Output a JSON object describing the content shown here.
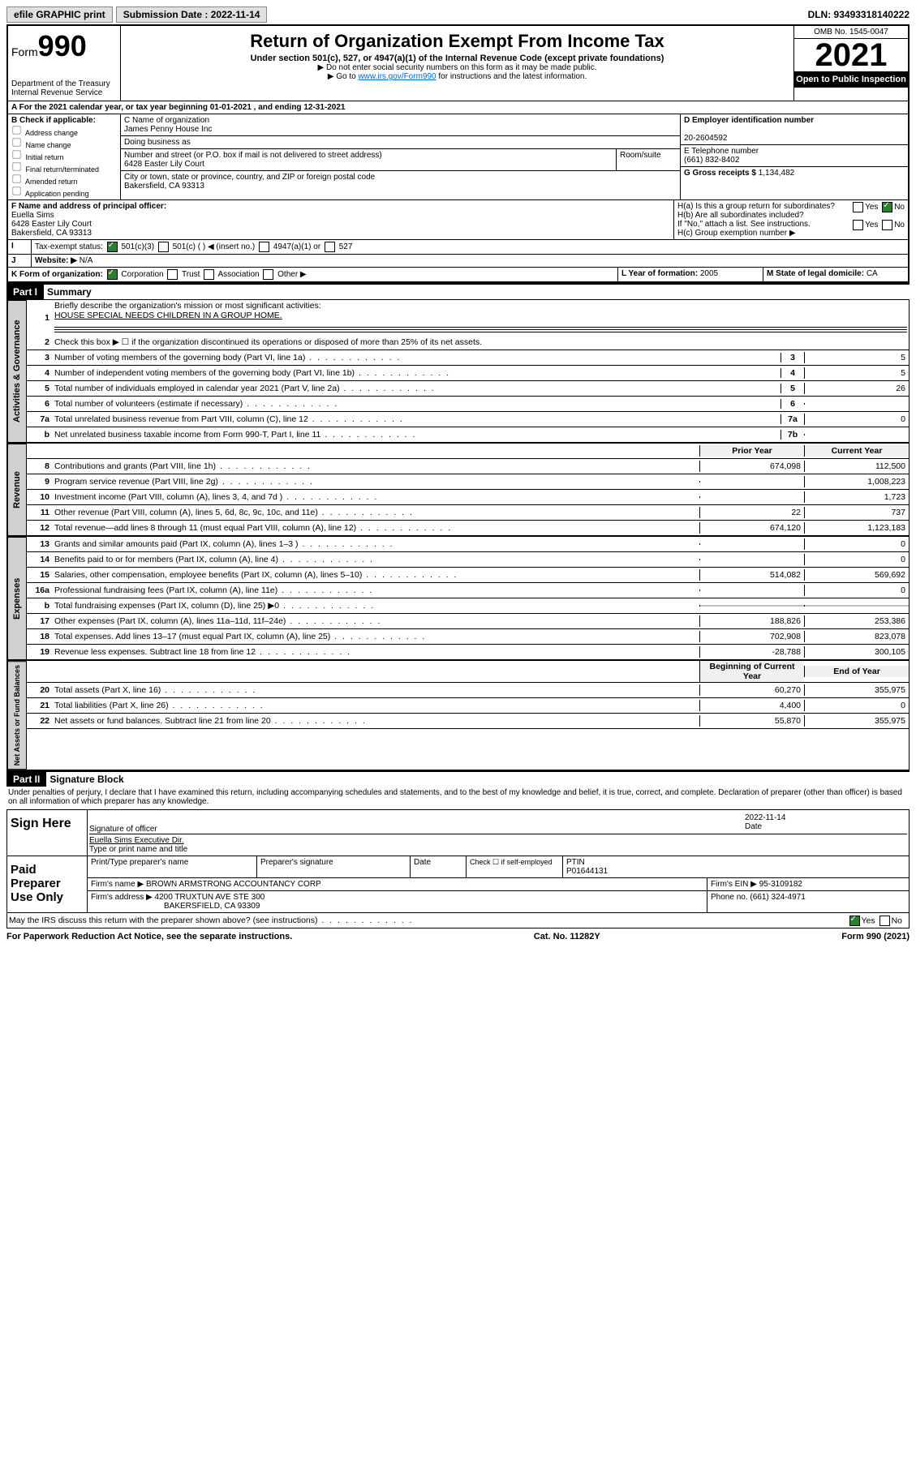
{
  "topbar": {
    "efile": "efile GRAPHIC print",
    "submission_label": "Submission Date : 2022-11-14",
    "dln": "DLN: 93493318140222"
  },
  "header": {
    "form_label": "Form",
    "form_number": "990",
    "dept": "Department of the Treasury",
    "irs": "Internal Revenue Service",
    "title": "Return of Organization Exempt From Income Tax",
    "subtitle": "Under section 501(c), 527, or 4947(a)(1) of the Internal Revenue Code (except private foundations)",
    "note1": "▶ Do not enter social security numbers on this form as it may be made public.",
    "note2_pre": "▶ Go to ",
    "note2_link": "www.irs.gov/Form990",
    "note2_post": " for instructions and the latest information.",
    "omb": "OMB No. 1545-0047",
    "year": "2021",
    "open": "Open to Public Inspection"
  },
  "section_a": {
    "a_line": "A For the 2021 calendar year, or tax year beginning 01-01-2021   , and ending 12-31-2021",
    "b_label": "B Check if applicable:",
    "b_opts": [
      "Address change",
      "Name change",
      "Initial return",
      "Final return/terminated",
      "Amended return",
      "Application pending"
    ],
    "c_label": "C Name of organization",
    "c_name": "James Penny House Inc",
    "dba_label": "Doing business as",
    "addr_label": "Number and street (or P.O. box if mail is not delivered to street address)",
    "room_label": "Room/suite",
    "addr": "6428 Easter Lily Court",
    "city_label": "City or town, state or province, country, and ZIP or foreign postal code",
    "city": "Bakersfield, CA  93313",
    "d_label": "D Employer identification number",
    "ein": "20-2604592",
    "e_label": "E Telephone number",
    "phone": "(661) 832-8402",
    "g_label": "G Gross receipts $",
    "gross": "1,134,482",
    "f_label": "F Name and address of principal officer:",
    "f_name": "Euella Sims",
    "f_addr": "6428 Easter Lily Court",
    "f_city": "Bakersfield, CA  93313",
    "ha_label": "H(a)  Is this a group return for subordinates?",
    "hb_label": "H(b)  Are all subordinates included?",
    "h_note": "If \"No,\" attach a list. See instructions.",
    "hc_label": "H(c)  Group exemption number ▶",
    "i_label": "Tax-exempt status:",
    "i_501c3": "501(c)(3)",
    "i_501c": "501(c) (  ) ◀ (insert no.)",
    "i_4947": "4947(a)(1) or",
    "i_527": "527",
    "j_label": "Website: ▶",
    "j_val": "N/A",
    "k_label": "K Form of organization:",
    "k_opts": [
      "Corporation",
      "Trust",
      "Association",
      "Other ▶"
    ],
    "l_label": "L Year of formation:",
    "l_val": "2005",
    "m_label": "M State of legal domicile:",
    "m_val": "CA",
    "yes": "Yes",
    "no": "No"
  },
  "part1": {
    "header": "Part I",
    "title": "Summary",
    "line1_label": "Briefly describe the organization's mission or most significant activities:",
    "line1_text": "HOUSE SPECIAL NEEDS CHILDREN IN A GROUP HOME.",
    "line2": "Check this box ▶ ☐  if the organization discontinued its operations or disposed of more than 25% of its net assets.",
    "vtabs": {
      "gov": "Activities & Governance",
      "rev": "Revenue",
      "exp": "Expenses",
      "net": "Net Assets or Fund Balances"
    },
    "cols": {
      "prior": "Prior Year",
      "current": "Current Year",
      "begin": "Beginning of Current Year",
      "end": "End of Year"
    },
    "gov_lines": [
      {
        "n": "3",
        "d": "Number of voting members of the governing body (Part VI, line 1a)",
        "box": "3",
        "v": "5"
      },
      {
        "n": "4",
        "d": "Number of independent voting members of the governing body (Part VI, line 1b)",
        "box": "4",
        "v": "5"
      },
      {
        "n": "5",
        "d": "Total number of individuals employed in calendar year 2021 (Part V, line 2a)",
        "box": "5",
        "v": "26"
      },
      {
        "n": "6",
        "d": "Total number of volunteers (estimate if necessary)",
        "box": "6",
        "v": ""
      },
      {
        "n": "7a",
        "d": "Total unrelated business revenue from Part VIII, column (C), line 12",
        "box": "7a",
        "v": "0"
      },
      {
        "n": "b",
        "d": "Net unrelated business taxable income from Form 990-T, Part I, line 11",
        "box": "7b",
        "v": ""
      }
    ],
    "rev_lines": [
      {
        "n": "8",
        "d": "Contributions and grants (Part VIII, line 1h)",
        "p": "674,098",
        "c": "112,500"
      },
      {
        "n": "9",
        "d": "Program service revenue (Part VIII, line 2g)",
        "p": "",
        "c": "1,008,223"
      },
      {
        "n": "10",
        "d": "Investment income (Part VIII, column (A), lines 3, 4, and 7d )",
        "p": "",
        "c": "1,723"
      },
      {
        "n": "11",
        "d": "Other revenue (Part VIII, column (A), lines 5, 6d, 8c, 9c, 10c, and 11e)",
        "p": "22",
        "c": "737"
      },
      {
        "n": "12",
        "d": "Total revenue—add lines 8 through 11 (must equal Part VIII, column (A), line 12)",
        "p": "674,120",
        "c": "1,123,183"
      }
    ],
    "exp_lines": [
      {
        "n": "13",
        "d": "Grants and similar amounts paid (Part IX, column (A), lines 1–3 )",
        "p": "",
        "c": "0"
      },
      {
        "n": "14",
        "d": "Benefits paid to or for members (Part IX, column (A), line 4)",
        "p": "",
        "c": "0"
      },
      {
        "n": "15",
        "d": "Salaries, other compensation, employee benefits (Part IX, column (A), lines 5–10)",
        "p": "514,082",
        "c": "569,692"
      },
      {
        "n": "16a",
        "d": "Professional fundraising fees (Part IX, column (A), line 11e)",
        "p": "",
        "c": "0"
      },
      {
        "n": "b",
        "d": "Total fundraising expenses (Part IX, column (D), line 25) ▶0",
        "p": "shaded",
        "c": "shaded"
      },
      {
        "n": "17",
        "d": "Other expenses (Part IX, column (A), lines 11a–11d, 11f–24e)",
        "p": "188,826",
        "c": "253,386"
      },
      {
        "n": "18",
        "d": "Total expenses. Add lines 13–17 (must equal Part IX, column (A), line 25)",
        "p": "702,908",
        "c": "823,078"
      },
      {
        "n": "19",
        "d": "Revenue less expenses. Subtract line 18 from line 12",
        "p": "-28,788",
        "c": "300,105"
      }
    ],
    "net_lines": [
      {
        "n": "20",
        "d": "Total assets (Part X, line 16)",
        "p": "60,270",
        "c": "355,975"
      },
      {
        "n": "21",
        "d": "Total liabilities (Part X, line 26)",
        "p": "4,400",
        "c": "0"
      },
      {
        "n": "22",
        "d": "Net assets or fund balances. Subtract line 21 from line 20",
        "p": "55,870",
        "c": "355,975"
      }
    ]
  },
  "part2": {
    "header": "Part II",
    "title": "Signature Block",
    "decl": "Under penalties of perjury, I declare that I have examined this return, including accompanying schedules and statements, and to the best of my knowledge and belief, it is true, correct, and complete. Declaration of preparer (other than officer) is based on all information of which preparer has any knowledge.",
    "sign_here": "Sign Here",
    "sig_officer": "Signature of officer",
    "sig_date_label": "Date",
    "sig_date": "2022-11-14",
    "sig_name": "Euella Sims  Executive Dir.",
    "sig_name_label": "Type or print name and title",
    "paid": "Paid Preparer Use Only",
    "prep_name_label": "Print/Type preparer's name",
    "prep_sig_label": "Preparer's signature",
    "date_label": "Date",
    "check_label": "Check ☐ if self-employed",
    "ptin_label": "PTIN",
    "ptin": "P01644131",
    "firm_name_label": "Firm's name    ▶",
    "firm_name": "BROWN ARMSTRONG ACCOUNTANCY CORP",
    "firm_ein_label": "Firm's EIN ▶",
    "firm_ein": "95-3109182",
    "firm_addr_label": "Firm's address ▶",
    "firm_addr": "4200 TRUXTUN AVE STE 300",
    "firm_city": "BAKERSFIELD, CA  93309",
    "firm_phone_label": "Phone no.",
    "firm_phone": "(661) 324-4971",
    "discuss": "May the IRS discuss this return with the preparer shown above? (see instructions)"
  },
  "footer": {
    "pra": "For Paperwork Reduction Act Notice, see the separate instructions.",
    "cat": "Cat. No. 11282Y",
    "form": "Form 990 (2021)"
  }
}
